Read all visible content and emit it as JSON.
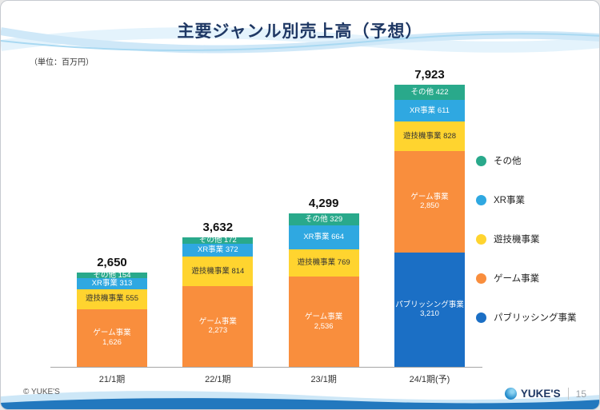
{
  "slide": {
    "title": "主要ジャンル別売上高（予想）",
    "unit_label": "（単位：百万円）",
    "copyright": "© YUKE'S",
    "logo_text": "YUKE'S",
    "page_number": "15"
  },
  "colors": {
    "title_text": "#1F3864",
    "axis": "#a6a6a6",
    "wave_light": "#DCEFFA",
    "wave_mid": "#BFE2F6",
    "bottom_strip": "#2278BE"
  },
  "chart_data": {
    "type": "bar",
    "stacked": true,
    "title": "主要ジャンル別売上高（予想）",
    "unit": "百万円",
    "categories": [
      "21/1期",
      "22/1期",
      "23/1期",
      "24/1期(予)"
    ],
    "totals": [
      2650,
      3632,
      4299,
      7923
    ],
    "totals_display": [
      "2,650",
      "3,632",
      "4,299",
      "7,923"
    ],
    "series": [
      {
        "name": "パブリッシング事業",
        "color": "#1B6FC5",
        "text_color": "#ffffff",
        "values": [
          0,
          0,
          0,
          3210
        ]
      },
      {
        "name": "ゲーム事業",
        "color": "#F98E3D",
        "text_color": "#ffffff",
        "values": [
          1626,
          2273,
          2536,
          2850
        ]
      },
      {
        "name": "遊技機事業",
        "color": "#FFD42F",
        "text_color": "#333333",
        "values": [
          555,
          814,
          769,
          828
        ]
      },
      {
        "name": "XR事業",
        "color": "#2FA8E1",
        "text_color": "#ffffff",
        "values": [
          313,
          372,
          664,
          611
        ]
      },
      {
        "name": "その他",
        "color": "#29A98B",
        "text_color": "#ffffff",
        "values": [
          154,
          172,
          329,
          422
        ]
      }
    ],
    "legend": [
      "その他",
      "XR事業",
      "遊技機事業",
      "ゲーム事業",
      "パブリッシング事業"
    ],
    "legend_position": "right",
    "grid": false,
    "ylim": [
      0,
      7923
    ]
  }
}
